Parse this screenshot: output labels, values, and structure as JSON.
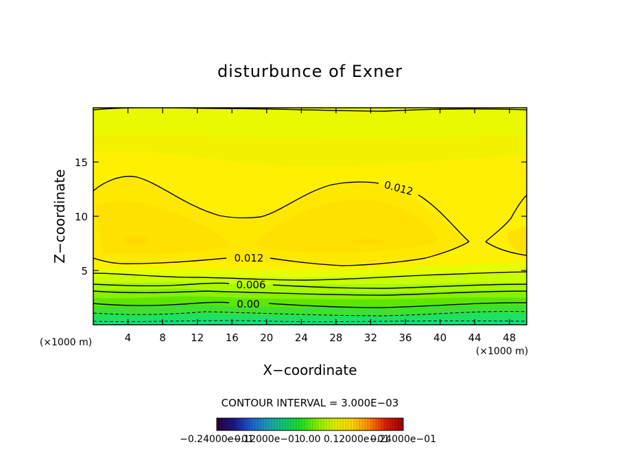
{
  "chart_data": {
    "type": "contour",
    "title": "disturbunce of Exner",
    "xlabel": "X−coordinate",
    "ylabel": "Z−coordinate",
    "x_unit_label": "(×1000 m)",
    "y_unit_label": "(×1000 m)",
    "xlim": [
      0,
      50
    ],
    "ylim": [
      0,
      20
    ],
    "x_ticks": [
      4,
      8,
      12,
      16,
      20,
      24,
      28,
      32,
      36,
      40,
      44,
      48
    ],
    "y_ticks": [
      5,
      10,
      15
    ],
    "contour_interval_text": "CONTOUR INTERVAL = 3.000E−03",
    "contour_labels": [
      {
        "text": "0.012",
        "x": 33.5,
        "z": 12.6
      },
      {
        "text": "0.012",
        "x": 18,
        "z": 6.2
      },
      {
        "text": "0.006",
        "x": 18,
        "z": 3.6
      },
      {
        "text": "0.00",
        "x": 17.5,
        "z": 1.9
      }
    ],
    "colorbar_ticks": [
      "−0.24000e−01",
      "−0.12000e−01",
      "0.00",
      "0.12000e−01",
      "0.24000e−01"
    ],
    "colormap": [
      "#2a0040",
      "#1a1a8c",
      "#1d5fd0",
      "#1aa0b4",
      "#10c870",
      "#20e020",
      "#90f000",
      "#e0f000",
      "#ffd700",
      "#ff8c00",
      "#e02000",
      "#a00000"
    ],
    "colorbar_range": [
      -0.024,
      0.024
    ]
  }
}
